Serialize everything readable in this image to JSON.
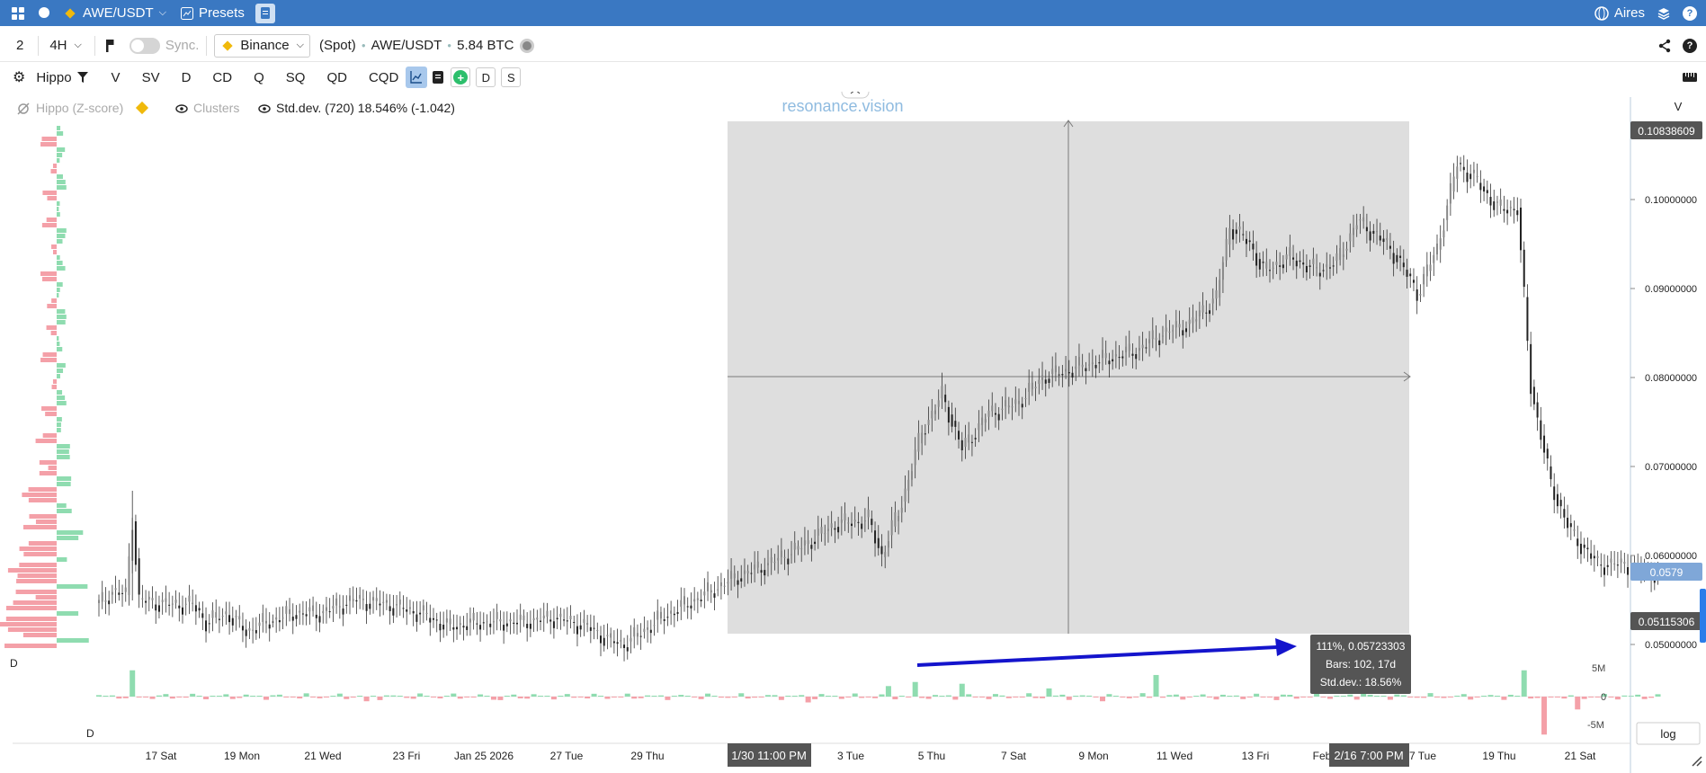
{
  "topbar": {
    "symbol": "AWE/USDT",
    "presets_label": "Presets",
    "user_label": "Aires"
  },
  "toolbar1": {
    "layout_count": "2",
    "interval": "4H",
    "sync_label": "Sync.",
    "exchange": "Binance",
    "market_type": "(Spot)",
    "pair": "AWE/USDT",
    "volume": "5.84 BTC"
  },
  "toolbar2": {
    "indicator_name": "Hippo",
    "buttons": [
      "V",
      "SV",
      "D",
      "CD",
      "Q",
      "SQ",
      "QD",
      "CQD"
    ],
    "d_button": "D",
    "s_button": "S"
  },
  "legend": {
    "hippo": "Hippo (Z-score)",
    "clusters": "Clusters",
    "stddev": "Std.dev. (720) 18.546% (-1.042)"
  },
  "watermark": "resonance.vision",
  "price_axis": {
    "title": "V",
    "high_label": "0.10838609",
    "current_label": "0.0579",
    "cross_label": "0.05115306",
    "ticks": [
      {
        "v": 0.1,
        "t": "0.10000000"
      },
      {
        "v": 0.09,
        "t": "0.09000000"
      },
      {
        "v": 0.08,
        "t": "0.08000000"
      },
      {
        "v": 0.07,
        "t": "0.07000000"
      },
      {
        "v": 0.06,
        "t": "0.06000000"
      },
      {
        "v": 0.05,
        "t": "0.05000000"
      }
    ]
  },
  "delta_axis": {
    "ticks": [
      "5M",
      "0",
      "-5M"
    ],
    "label_top": "D",
    "label_bottom": "D"
  },
  "time_axis": {
    "ticks": [
      "17 Sat",
      "19 Mon",
      "21 Wed",
      "23 Fri",
      "Jan 25 2026",
      "27 Tue",
      "29 Thu",
      "3 Tue",
      "5 Thu",
      "7 Sat",
      "9 Mon",
      "11 Wed",
      "13 Fri",
      "Feb",
      "7 Tue",
      "19 Thu",
      "21 Sat"
    ],
    "cursor_start": "1/30 11:00 PM",
    "cursor_end": "2/16 7:00 PM"
  },
  "measure_tooltip": {
    "line1": "111%, 0.05723303",
    "line2": "Bars: 102, 17d",
    "line3": "Std.dev.: 18.56%"
  },
  "log_button": "log",
  "colors": {
    "topbar": "#3a78c2",
    "up_delta": "#8fdcb0",
    "down_delta": "#f4a0a8",
    "arrow": "#1414cc",
    "selection": "#dedede"
  },
  "chart_data": {
    "type": "candlestick",
    "interval": "4H",
    "ylim": [
      0.045,
      0.11
    ],
    "price_path": [
      [
        0,
        0.0545
      ],
      [
        4,
        0.056
      ],
      [
        8,
        0.0555
      ],
      [
        10,
        0.064
      ],
      [
        12,
        0.055
      ],
      [
        20,
        0.0545
      ],
      [
        28,
        0.0545
      ],
      [
        32,
        0.0525
      ],
      [
        38,
        0.0535
      ],
      [
        44,
        0.0515
      ],
      [
        50,
        0.0525
      ],
      [
        58,
        0.0535
      ],
      [
        66,
        0.0535
      ],
      [
        76,
        0.055
      ],
      [
        86,
        0.0545
      ],
      [
        96,
        0.0535
      ],
      [
        104,
        0.052
      ],
      [
        114,
        0.0525
      ],
      [
        126,
        0.0525
      ],
      [
        136,
        0.053
      ],
      [
        146,
        0.052
      ],
      [
        152,
        0.0505
      ],
      [
        157,
        0.05
      ],
      [
        168,
        0.053
      ],
      [
        178,
        0.055
      ],
      [
        190,
        0.0575
      ],
      [
        200,
        0.059
      ],
      [
        210,
        0.061
      ],
      [
        220,
        0.0635
      ],
      [
        230,
        0.064
      ],
      [
        234,
        0.06
      ],
      [
        240,
        0.066
      ],
      [
        246,
        0.074
      ],
      [
        252,
        0.078
      ],
      [
        258,
        0.072
      ],
      [
        266,
        0.076
      ],
      [
        274,
        0.077
      ],
      [
        282,
        0.08
      ],
      [
        292,
        0.081
      ],
      [
        300,
        0.082
      ],
      [
        310,
        0.083
      ],
      [
        318,
        0.085
      ],
      [
        326,
        0.086
      ],
      [
        334,
        0.089
      ],
      [
        338,
        0.097
      ],
      [
        344,
        0.095
      ],
      [
        348,
        0.092
      ],
      [
        356,
        0.0935
      ],
      [
        364,
        0.092
      ],
      [
        370,
        0.093
      ],
      [
        376,
        0.0975
      ],
      [
        382,
        0.096
      ],
      [
        388,
        0.0935
      ],
      [
        394,
        0.0895
      ],
      [
        400,
        0.0945
      ],
      [
        406,
        0.104
      ],
      [
        412,
        0.102
      ],
      [
        418,
        0.099
      ],
      [
        424,
        0.099
      ],
      [
        428,
        0.079
      ],
      [
        434,
        0.068
      ],
      [
        440,
        0.0625
      ],
      [
        448,
        0.059
      ],
      [
        456,
        0.059
      ],
      [
        462,
        0.0582
      ],
      [
        466,
        0.0579
      ]
    ],
    "delta_spikes": [
      [
        10,
        4.5
      ],
      [
        49,
        1.8
      ],
      [
        80,
        -0.8
      ],
      [
        120,
        -0.6
      ],
      [
        165,
        0.9
      ],
      [
        185,
        1.6
      ],
      [
        212,
        -1.0
      ],
      [
        236,
        1.8
      ],
      [
        244,
        2.5
      ],
      [
        258,
        2.2
      ],
      [
        284,
        1.4
      ],
      [
        300,
        -0.8
      ],
      [
        316,
        3.7
      ],
      [
        352,
        -0.6
      ],
      [
        378,
        1.5
      ],
      [
        419,
        1.8
      ],
      [
        426,
        4.5
      ],
      [
        432,
        -6.5
      ],
      [
        442,
        -2.2
      ]
    ]
  }
}
